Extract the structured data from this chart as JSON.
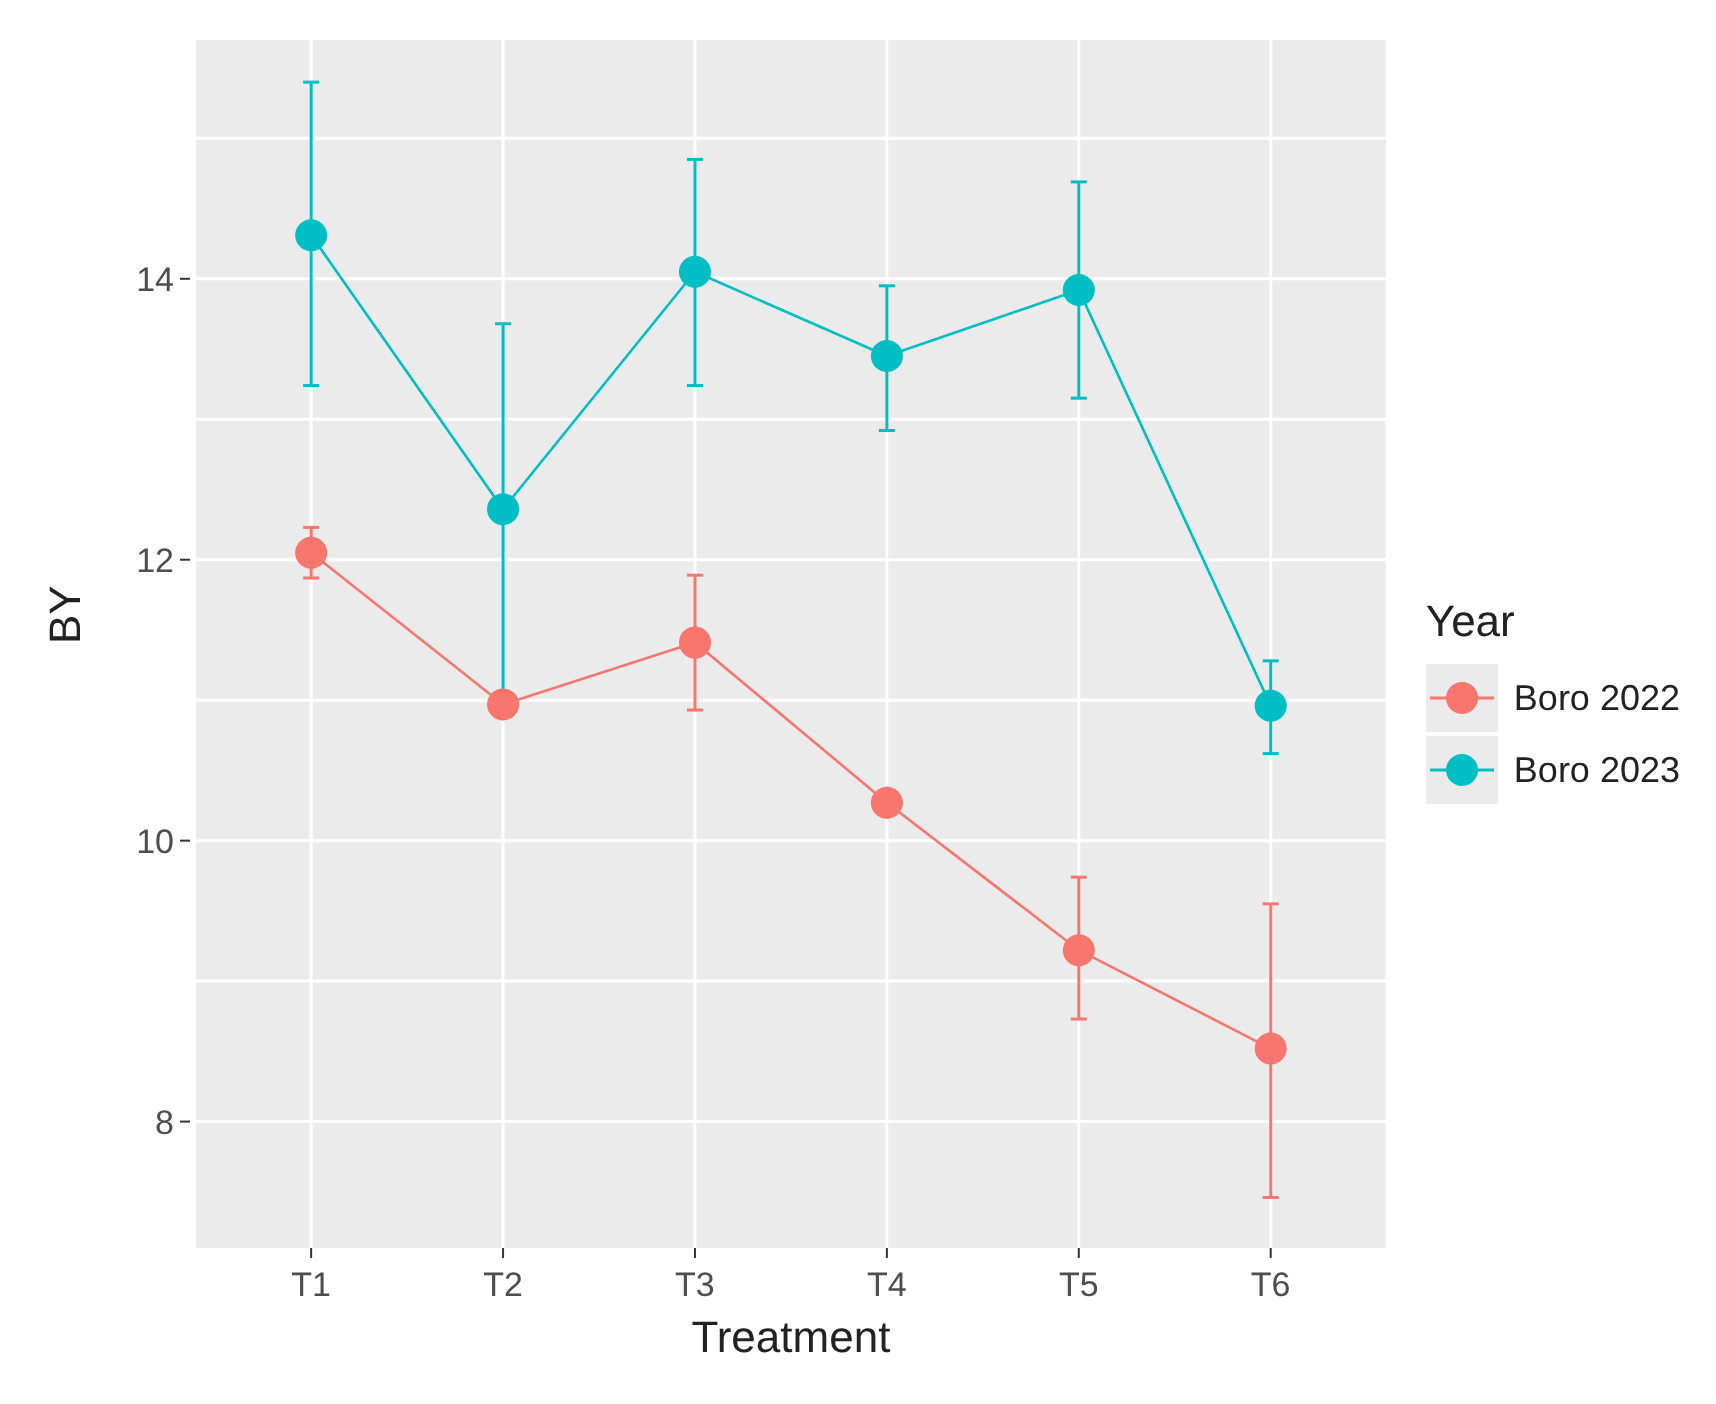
{
  "chart_data": {
    "type": "line",
    "xlabel": "Treatment",
    "ylabel": "BY",
    "legend_title": "Year",
    "categories": [
      "T1",
      "T2",
      "T3",
      "T4",
      "T5",
      "T6"
    ],
    "series": [
      {
        "name": "Boro 2022",
        "color": "#f8766d",
        "values": [
          12.05,
          10.97,
          11.41,
          10.27,
          9.22,
          8.52
        ],
        "errors": [
          [
            11.87,
            12.23
          ],
          null,
          [
            10.93,
            11.89
          ],
          null,
          [
            8.73,
            9.74
          ],
          [
            7.46,
            9.55
          ]
        ]
      },
      {
        "name": "Boro 2023",
        "color": "#00bfc4",
        "values": [
          14.31,
          12.36,
          14.05,
          13.45,
          13.92,
          10.96
        ],
        "errors": [
          [
            13.24,
            15.4
          ],
          [
            11.04,
            13.68
          ],
          [
            13.24,
            14.85
          ],
          [
            12.92,
            13.95
          ],
          [
            13.15,
            14.69
          ],
          [
            10.62,
            11.28
          ]
        ]
      }
    ],
    "ylim": [
      7.1,
      15.7
    ],
    "yticks": [
      8,
      {
        "value": 9,
        "label": null
      },
      10,
      {
        "value": 11,
        "label": null
      },
      12,
      {
        "value": 13,
        "label": null
      },
      14,
      {
        "value": 15,
        "label": null
      }
    ],
    "grid": true,
    "legend": "right",
    "marker": "circle",
    "line_style": "solid"
  }
}
